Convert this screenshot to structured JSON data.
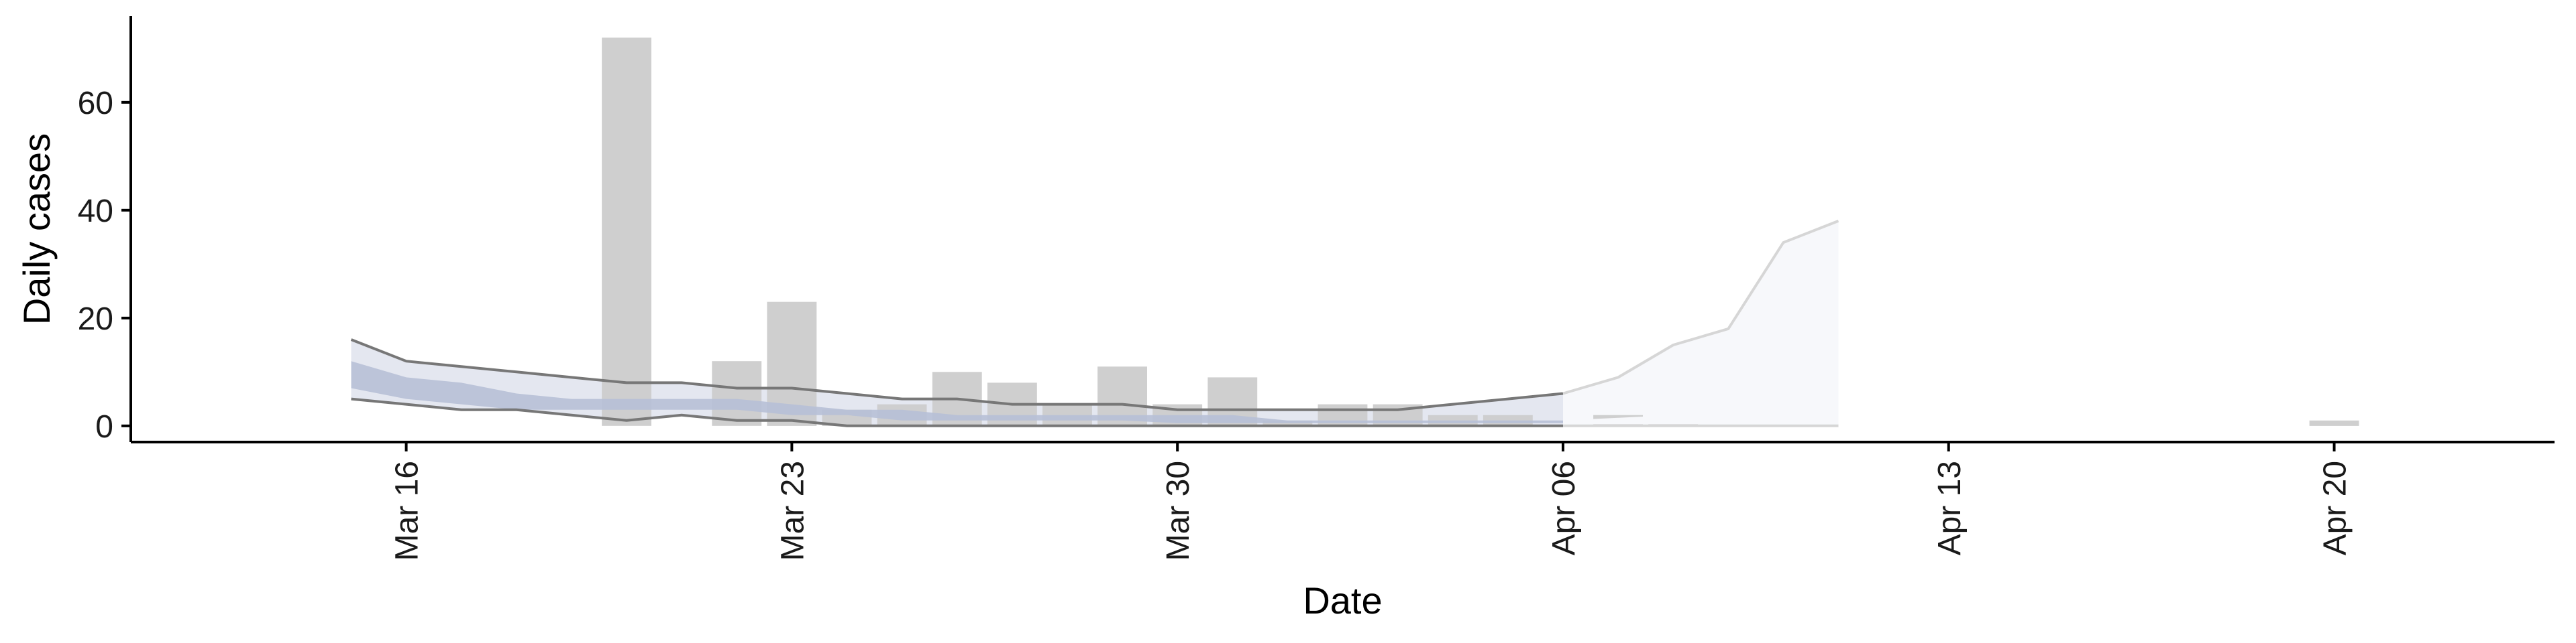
{
  "chart_data": {
    "type": "bar",
    "title": "",
    "xlabel": "Date",
    "ylabel": "Daily cases",
    "grid": false,
    "legend": "none",
    "x_range": [
      "2020-03-11",
      "2020-04-24"
    ],
    "ylim": [
      -3,
      76
    ],
    "x_ticks": [
      {
        "date": "2020-03-16",
        "label": "Mar 16"
      },
      {
        "date": "2020-03-23",
        "label": "Mar 23"
      },
      {
        "date": "2020-03-30",
        "label": "Mar 30"
      },
      {
        "date": "2020-04-06",
        "label": "Apr 06"
      },
      {
        "date": "2020-04-13",
        "label": "Apr 13"
      },
      {
        "date": "2020-04-20",
        "label": "Apr 20"
      }
    ],
    "y_ticks": [
      {
        "value": 0,
        "label": "0"
      },
      {
        "value": 20,
        "label": "20"
      },
      {
        "value": 40,
        "label": "40"
      },
      {
        "value": 60,
        "label": "60"
      }
    ],
    "colors": {
      "bars": "#cccccc",
      "fit_line": "#777777",
      "inner_band": "#b7c0d6",
      "outer_band": "#e4e7f0",
      "forecast_line": "#d6d6d6",
      "forecast_band": "#f7f8fb"
    },
    "bars": [
      {
        "date": "2020-03-20",
        "value": 72
      },
      {
        "date": "2020-03-22",
        "value": 12
      },
      {
        "date": "2020-03-23",
        "value": 23
      },
      {
        "date": "2020-03-24",
        "value": 3
      },
      {
        "date": "2020-03-25",
        "value": 4
      },
      {
        "date": "2020-03-26",
        "value": 10
      },
      {
        "date": "2020-03-27",
        "value": 8
      },
      {
        "date": "2020-03-28",
        "value": 4
      },
      {
        "date": "2020-03-29",
        "value": 11
      },
      {
        "date": "2020-03-30",
        "value": 4
      },
      {
        "date": "2020-03-31",
        "value": 9
      },
      {
        "date": "2020-04-01",
        "value": 1
      },
      {
        "date": "2020-04-02",
        "value": 4
      },
      {
        "date": "2020-04-03",
        "value": 4
      },
      {
        "date": "2020-04-04",
        "value": 2
      },
      {
        "date": "2020-04-05",
        "value": 2
      },
      {
        "date": "2020-04-07",
        "value": 2
      },
      {
        "date": "2020-04-08",
        "value": 1
      },
      {
        "date": "2020-04-20",
        "value": 1
      }
    ],
    "series": [
      {
        "kind": "estimate",
        "dates": [
          "2020-03-15",
          "2020-03-16",
          "2020-03-17",
          "2020-03-18",
          "2020-03-19",
          "2020-03-20",
          "2020-03-21",
          "2020-03-22",
          "2020-03-23",
          "2020-03-24",
          "2020-03-25",
          "2020-03-26",
          "2020-03-27",
          "2020-03-28",
          "2020-03-29",
          "2020-03-30",
          "2020-03-31",
          "2020-04-01",
          "2020-04-02",
          "2020-04-03",
          "2020-04-04",
          "2020-04-05",
          "2020-04-06"
        ],
        "upper_90": [
          16,
          12,
          11,
          10,
          9,
          8,
          8,
          7,
          7,
          6,
          5,
          5,
          4,
          4,
          4,
          3,
          3,
          3,
          3,
          3,
          4,
          5,
          6
        ],
        "upper_50": [
          12,
          9,
          8,
          6,
          5,
          5,
          5,
          5,
          4,
          3,
          3,
          2,
          2,
          2,
          2,
          2,
          2,
          1,
          1,
          1,
          1,
          1,
          1
        ],
        "lower_50": [
          7,
          5,
          4,
          3,
          3,
          3,
          3,
          3,
          2,
          2,
          1,
          1,
          1,
          1,
          1,
          0.5,
          0.5,
          0.5,
          0.5,
          0.5,
          0.5,
          0.5,
          0.5
        ],
        "lower_90": [
          5,
          4,
          3,
          3,
          2,
          1,
          2,
          1,
          1,
          0,
          0,
          0,
          0,
          0,
          0,
          0,
          0,
          0,
          0,
          0,
          0,
          0,
          0
        ]
      },
      {
        "kind": "forecast",
        "dates": [
          "2020-04-06",
          "2020-04-07",
          "2020-04-08",
          "2020-04-09",
          "2020-04-10",
          "2020-04-11"
        ],
        "upper_90": [
          6,
          9,
          15,
          18,
          34,
          38
        ],
        "upper_50": [
          1,
          1.5,
          2,
          2,
          2,
          3
        ],
        "lower_50": [
          0.3,
          0.3,
          0.3,
          0.3,
          0.3,
          0.3
        ],
        "lower_90": [
          0,
          0,
          0,
          0,
          0,
          0
        ]
      }
    ]
  }
}
